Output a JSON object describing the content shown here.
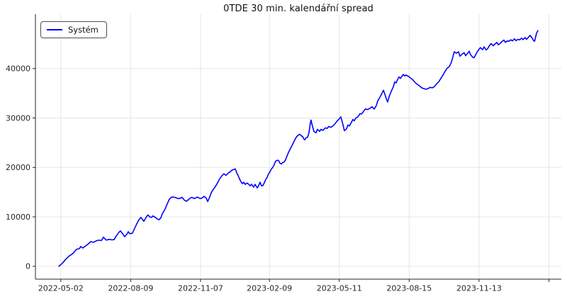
{
  "figure": {
    "title": "0TDE 30 min. kalendářní spread"
  },
  "legend": {
    "label": "Systém",
    "line_color": "#0000ff"
  },
  "chart_data": {
    "type": "line",
    "title": "0TDE 30 min. kalendářní spread",
    "grid": true,
    "legend_position": "upper-left",
    "colors": {
      "line": "#0000ff",
      "grid": "#e6e6e6",
      "axis": "#262626",
      "background": "#ffffff"
    },
    "xlim": [
      -23.4,
      503.4
    ],
    "ylim": [
      -2600,
      51000
    ],
    "x_ticks": [
      {
        "pos": 2,
        "label": "2022-05-02"
      },
      {
        "pos": 72,
        "label": "2022-08-09"
      },
      {
        "pos": 142,
        "label": "2022-11-07"
      },
      {
        "pos": 211,
        "label": "2023-02-09"
      },
      {
        "pos": 281,
        "label": "2023-05-11"
      },
      {
        "pos": 351,
        "label": "2023-08-15"
      },
      {
        "pos": 421,
        "label": "2023-11-13"
      },
      {
        "pos": 491,
        "label": ""
      }
    ],
    "y_ticks": [
      {
        "pos": 0,
        "label": "0"
      },
      {
        "pos": 10000,
        "label": "10000"
      },
      {
        "pos": 20000,
        "label": "20000"
      },
      {
        "pos": 30000,
        "label": "30000"
      },
      {
        "pos": 40000,
        "label": "40000"
      }
    ],
    "series": [
      {
        "name": "Systém",
        "color": "#0000ff",
        "points": [
          [
            0,
            0
          ],
          [
            3.5,
            600
          ],
          [
            6.4,
            1300
          ],
          [
            9.9,
            2000
          ],
          [
            14.2,
            2600
          ],
          [
            17.7,
            3430
          ],
          [
            20.6,
            3570
          ],
          [
            22,
            4000
          ],
          [
            24.1,
            3710
          ],
          [
            27,
            4140
          ],
          [
            29.8,
            4570
          ],
          [
            31.9,
            5000
          ],
          [
            34.8,
            4860
          ],
          [
            37.6,
            5150
          ],
          [
            40.5,
            5300
          ],
          [
            42.6,
            5200
          ],
          [
            44.7,
            5900
          ],
          [
            47.6,
            5300
          ],
          [
            50.4,
            5450
          ],
          [
            53.2,
            5350
          ],
          [
            55.4,
            5400
          ],
          [
            57.5,
            6100
          ],
          [
            60.3,
            6900
          ],
          [
            61.8,
            7150
          ],
          [
            63.9,
            6600
          ],
          [
            66,
            6000
          ],
          [
            68.2,
            6500
          ],
          [
            69.6,
            7000
          ],
          [
            71,
            6600
          ],
          [
            73.8,
            6700
          ],
          [
            77.4,
            8300
          ],
          [
            80.2,
            9400
          ],
          [
            82.3,
            9900
          ],
          [
            85.2,
            9100
          ],
          [
            88,
            10100
          ],
          [
            89.5,
            10400
          ],
          [
            90.9,
            10000
          ],
          [
            93,
            9900
          ],
          [
            94.4,
            10200
          ],
          [
            96.6,
            9900
          ],
          [
            98.7,
            9600
          ],
          [
            100.1,
            9400
          ],
          [
            102.2,
            9800
          ],
          [
            103.7,
            10600
          ],
          [
            106.5,
            11600
          ],
          [
            108.6,
            12600
          ],
          [
            110.8,
            13600
          ],
          [
            112.9,
            14000
          ],
          [
            115,
            14000
          ],
          [
            117.1,
            13900
          ],
          [
            119.3,
            13700
          ],
          [
            121.4,
            13750
          ],
          [
            123.5,
            13950
          ],
          [
            125.7,
            13400
          ],
          [
            127.8,
            13150
          ],
          [
            129.9,
            13500
          ],
          [
            132,
            13850
          ],
          [
            133.5,
            13950
          ],
          [
            135.6,
            13700
          ],
          [
            137.7,
            13900
          ],
          [
            139.2,
            14000
          ],
          [
            140.6,
            13800
          ],
          [
            142,
            13700
          ],
          [
            144.1,
            13900
          ],
          [
            145.5,
            14150
          ],
          [
            147.7,
            13800
          ],
          [
            149.1,
            13100
          ],
          [
            151.2,
            14000
          ],
          [
            152.6,
            14860
          ],
          [
            154.8,
            15570
          ],
          [
            156.9,
            16140
          ],
          [
            159,
            16860
          ],
          [
            161.2,
            17710
          ],
          [
            163.3,
            18290
          ],
          [
            165.4,
            18710
          ],
          [
            167.5,
            18400
          ],
          [
            169.7,
            18860
          ],
          [
            171.8,
            19150
          ],
          [
            173.9,
            19500
          ],
          [
            175.4,
            19600
          ],
          [
            176.8,
            19700
          ],
          [
            178.2,
            18900
          ],
          [
            179.6,
            18400
          ],
          [
            181,
            17700
          ],
          [
            182.4,
            17140
          ],
          [
            183.9,
            16700
          ],
          [
            185.3,
            17000
          ],
          [
            186.7,
            16570
          ],
          [
            188.8,
            16850
          ],
          [
            191,
            16430
          ],
          [
            191.7,
            16280
          ],
          [
            193.1,
            16600
          ],
          [
            194.5,
            16200
          ],
          [
            195.2,
            16000
          ],
          [
            196.6,
            16570
          ],
          [
            198.1,
            16100
          ],
          [
            198.8,
            15860
          ],
          [
            200.2,
            16300
          ],
          [
            201.6,
            17000
          ],
          [
            203,
            16280
          ],
          [
            204.5,
            16350
          ],
          [
            205.9,
            16900
          ],
          [
            207.3,
            17570
          ],
          [
            208.7,
            18000
          ],
          [
            210.1,
            18700
          ],
          [
            211.6,
            19150
          ],
          [
            213,
            19700
          ],
          [
            214.4,
            20000
          ],
          [
            215.8,
            20570
          ],
          [
            217.2,
            21280
          ],
          [
            218.7,
            21430
          ],
          [
            220.1,
            21430
          ],
          [
            221.5,
            20860
          ],
          [
            222.9,
            20700
          ],
          [
            224.3,
            21000
          ],
          [
            225.8,
            21100
          ],
          [
            227.2,
            21570
          ],
          [
            228.6,
            22280
          ],
          [
            230,
            23000
          ],
          [
            231.4,
            23570
          ],
          [
            232.9,
            24150
          ],
          [
            234.3,
            24700
          ],
          [
            235.7,
            25280
          ],
          [
            237.1,
            25860
          ],
          [
            238.5,
            26280
          ],
          [
            240,
            26570
          ],
          [
            241.4,
            26700
          ],
          [
            242.8,
            26400
          ],
          [
            244.2,
            26280
          ],
          [
            245.6,
            25700
          ],
          [
            246.3,
            25570
          ],
          [
            247.8,
            26000
          ],
          [
            249.2,
            26100
          ],
          [
            250.6,
            27000
          ],
          [
            252,
            29000
          ],
          [
            252.7,
            29570
          ],
          [
            254.1,
            28300
          ],
          [
            255.6,
            27280
          ],
          [
            257.7,
            27000
          ],
          [
            259.1,
            27700
          ],
          [
            261.2,
            27300
          ],
          [
            262.6,
            27700
          ],
          [
            264.8,
            27500
          ],
          [
            266.9,
            28000
          ],
          [
            269,
            27900
          ],
          [
            270.4,
            28280
          ],
          [
            272.6,
            28100
          ],
          [
            274.7,
            28430
          ],
          [
            276.8,
            28860
          ],
          [
            279,
            29430
          ],
          [
            280.4,
            29700
          ],
          [
            282.5,
            30240
          ],
          [
            284.7,
            28600
          ],
          [
            286.1,
            27430
          ],
          [
            288.2,
            27800
          ],
          [
            289.6,
            28570
          ],
          [
            291.1,
            28400
          ],
          [
            293.2,
            29140
          ],
          [
            294.6,
            29700
          ],
          [
            296,
            29430
          ],
          [
            297.5,
            30000
          ],
          [
            298.9,
            30100
          ],
          [
            300.3,
            30430
          ],
          [
            301.7,
            30860
          ],
          [
            303.1,
            30800
          ],
          [
            304.6,
            31140
          ],
          [
            306,
            31570
          ],
          [
            307.4,
            31860
          ],
          [
            308.8,
            31700
          ],
          [
            310.2,
            31800
          ],
          [
            311.7,
            31950
          ],
          [
            313.8,
            32280
          ],
          [
            315.9,
            31810
          ],
          [
            318,
            32500
          ],
          [
            319.5,
            33470
          ],
          [
            322.3,
            34430
          ],
          [
            323.7,
            35000
          ],
          [
            325.2,
            35610
          ],
          [
            326.6,
            34800
          ],
          [
            328,
            33950
          ],
          [
            329.4,
            33240
          ],
          [
            330.9,
            34300
          ],
          [
            333,
            35400
          ],
          [
            335.1,
            36300
          ],
          [
            336.5,
            37300
          ],
          [
            337.9,
            37100
          ],
          [
            339.4,
            37800
          ],
          [
            340.8,
            38300
          ],
          [
            342.2,
            38000
          ],
          [
            343.6,
            38400
          ],
          [
            345.1,
            38800
          ],
          [
            346.5,
            38500
          ],
          [
            347.9,
            38700
          ],
          [
            349.3,
            38500
          ],
          [
            350.7,
            38400
          ],
          [
            352.1,
            38100
          ],
          [
            354.3,
            37800
          ],
          [
            356.4,
            37300
          ],
          [
            358.5,
            36900
          ],
          [
            361.3,
            36500
          ],
          [
            363.5,
            36100
          ],
          [
            365.6,
            35950
          ],
          [
            367.7,
            35810
          ],
          [
            369.9,
            35950
          ],
          [
            372,
            36200
          ],
          [
            374.1,
            36100
          ],
          [
            376.3,
            36350
          ],
          [
            378.4,
            36900
          ],
          [
            380.5,
            37300
          ],
          [
            382.7,
            38000
          ],
          [
            384.8,
            38700
          ],
          [
            386.9,
            39400
          ],
          [
            389.1,
            40100
          ],
          [
            391.2,
            40400
          ],
          [
            393.3,
            41300
          ],
          [
            394.7,
            42300
          ],
          [
            396.1,
            43400
          ],
          [
            398.2,
            43100
          ],
          [
            400.4,
            43400
          ],
          [
            401.8,
            42500
          ],
          [
            404.6,
            43000
          ],
          [
            406.1,
            43200
          ],
          [
            407.5,
            42600
          ],
          [
            409.6,
            43100
          ],
          [
            411,
            43500
          ],
          [
            412.5,
            42800
          ],
          [
            414.6,
            42300
          ],
          [
            416,
            42200
          ],
          [
            417.4,
            42700
          ],
          [
            418.9,
            43300
          ],
          [
            421,
            43900
          ],
          [
            422.4,
            44240
          ],
          [
            424.5,
            43800
          ],
          [
            426,
            44390
          ],
          [
            428.1,
            43760
          ],
          [
            429.5,
            44000
          ],
          [
            431.6,
            44710
          ],
          [
            433.1,
            45040
          ],
          [
            435.2,
            44600
          ],
          [
            436.6,
            44900
          ],
          [
            438.7,
            45280
          ],
          [
            440.2,
            44810
          ],
          [
            442.3,
            45100
          ],
          [
            443.7,
            45430
          ],
          [
            445.8,
            45760
          ],
          [
            447.3,
            45300
          ],
          [
            449.4,
            45600
          ],
          [
            450.8,
            45500
          ],
          [
            452.9,
            45810
          ],
          [
            454.4,
            45600
          ],
          [
            456.5,
            46000
          ],
          [
            457.9,
            45650
          ],
          [
            460,
            45900
          ],
          [
            461.5,
            45800
          ],
          [
            463.6,
            46140
          ],
          [
            465,
            45850
          ],
          [
            467.1,
            46280
          ],
          [
            468.5,
            45900
          ],
          [
            470.7,
            46390
          ],
          [
            472.1,
            46710
          ],
          [
            474.2,
            46140
          ],
          [
            475.6,
            45670
          ],
          [
            476.6,
            45530
          ],
          [
            478.5,
            47100
          ],
          [
            479.9,
            47670
          ]
        ]
      }
    ]
  }
}
